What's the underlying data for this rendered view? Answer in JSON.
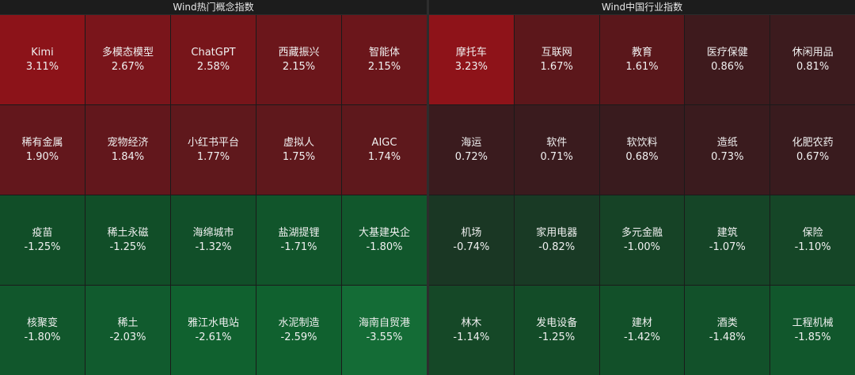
{
  "panels": [
    {
      "title": "Wind热门概念指数",
      "tiles": [
        {
          "name": "Kimi",
          "change": "3.11%",
          "color": "#8c1319"
        },
        {
          "name": "多模态模型",
          "change": "2.67%",
          "color": "#7a151b"
        },
        {
          "name": "ChatGPT",
          "change": "2.58%",
          "color": "#77151a"
        },
        {
          "name": "西藏振兴",
          "change": "2.15%",
          "color": "#6b161b"
        },
        {
          "name": "智能体",
          "change": "2.15%",
          "color": "#6b161b"
        },
        {
          "name": "稀有金属",
          "change": "1.90%",
          "color": "#63171c"
        },
        {
          "name": "宠物经济",
          "change": "1.84%",
          "color": "#62171c"
        },
        {
          "name": "小红书平台",
          "change": "1.77%",
          "color": "#5f181c"
        },
        {
          "name": "虚拟人",
          "change": "1.75%",
          "color": "#5f181c"
        },
        {
          "name": "AIGC",
          "change": "1.74%",
          "color": "#5e181c"
        },
        {
          "name": "疫苗",
          "change": "-1.25%",
          "color": "#114e28"
        },
        {
          "name": "稀土永磁",
          "change": "-1.25%",
          "color": "#114e28"
        },
        {
          "name": "海绵城市",
          "change": "-1.32%",
          "color": "#114f29"
        },
        {
          "name": "盐湖提锂",
          "change": "-1.71%",
          "color": "#11552b"
        },
        {
          "name": "大基建央企",
          "change": "-1.80%",
          "color": "#11572c"
        },
        {
          "name": "核聚变",
          "change": "-1.80%",
          "color": "#11572c"
        },
        {
          "name": "稀土",
          "change": "-2.03%",
          "color": "#115b2e"
        },
        {
          "name": "雅江水电站",
          "change": "-2.61%",
          "color": "#10612f"
        },
        {
          "name": "水泥制造",
          "change": "-2.59%",
          "color": "#10612f"
        },
        {
          "name": "海南自贸港",
          "change": "-3.55%",
          "color": "#146c36"
        }
      ]
    },
    {
      "title": "Wind中国行业指数",
      "tiles": [
        {
          "name": "摩托车",
          "change": "3.23%",
          "color": "#8e1319"
        },
        {
          "name": "互联网",
          "change": "1.67%",
          "color": "#5c171b"
        },
        {
          "name": "教育",
          "change": "1.61%",
          "color": "#5a171b"
        },
        {
          "name": "医疗保健",
          "change": "0.86%",
          "color": "#3e1a1d"
        },
        {
          "name": "休闲用品",
          "change": "0.81%",
          "color": "#3c1b1e"
        },
        {
          "name": "海运",
          "change": "0.72%",
          "color": "#3a1b1e"
        },
        {
          "name": "软件",
          "change": "0.71%",
          "color": "#3a1b1e"
        },
        {
          "name": "软饮料",
          "change": "0.68%",
          "color": "#391b1e"
        },
        {
          "name": "造纸",
          "change": "0.73%",
          "color": "#3a1b1e"
        },
        {
          "name": "化肥农药",
          "change": "0.67%",
          "color": "#391b1e"
        },
        {
          "name": "机场",
          "change": "-0.74%",
          "color": "#1a3724"
        },
        {
          "name": "家用电器",
          "change": "-0.82%",
          "color": "#193a25"
        },
        {
          "name": "多元金融",
          "change": "-1.00%",
          "color": "#164326"
        },
        {
          "name": "建筑",
          "change": "-1.07%",
          "color": "#154527"
        },
        {
          "name": "保险",
          "change": "-1.10%",
          "color": "#154627"
        },
        {
          "name": "林木",
          "change": "-1.14%",
          "color": "#154827"
        },
        {
          "name": "发电设备",
          "change": "-1.25%",
          "color": "#134c28"
        },
        {
          "name": "建材",
          "change": "-1.42%",
          "color": "#125029"
        },
        {
          "name": "酒类",
          "change": "-1.48%",
          "color": "#12512a"
        },
        {
          "name": "工程机械",
          "change": "-1.85%",
          "color": "#11572c"
        }
      ]
    }
  ]
}
